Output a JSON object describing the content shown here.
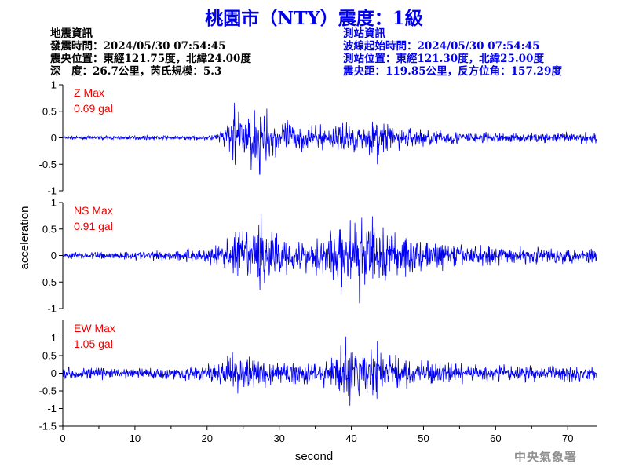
{
  "title": "桃園市（NTY）震度：1級",
  "quake_info": {
    "heading": "地震資訊",
    "time": "發震時間：2024/05/30 07:54:45",
    "epicenter": "震央位置：東經121.75度，北緯24.00度",
    "depth_magnitude": "深　度：26.7公里，芮氏規模：5.3"
  },
  "station_info": {
    "heading": "測站資訊",
    "wave_start": "波線起始時間：2024/05/30 07:54:45",
    "location": "測站位置：東經121.30度，北緯25.00度",
    "distance": "震央距：119.85公里，反方位角：157.29度"
  },
  "agency": "中央氣象署",
  "colors": {
    "trace": "#0000ee",
    "max_label": "#ee0000",
    "title": "#0000ee"
  },
  "chart_data": {
    "type": "line",
    "xlabel": "second",
    "ylabel": "acceleration",
    "xlim": [
      0,
      74
    ],
    "xticks": [
      0,
      10,
      20,
      30,
      40,
      50,
      60,
      70
    ],
    "panels": [
      {
        "component": "Z",
        "max_label": "Z Max",
        "max_value": "0.69 gal",
        "ylim": [
          -1,
          1
        ],
        "yticks": [
          -1,
          -0.5,
          0,
          0.5,
          1
        ],
        "ytick_labels": [
          "-1",
          "-0.5",
          "0",
          "0.5",
          "1"
        ],
        "envelope": [
          [
            0,
            0.04
          ],
          [
            20,
            0.05
          ],
          [
            22,
            0.15
          ],
          [
            23,
            0.45
          ],
          [
            24,
            0.55
          ],
          [
            26,
            0.55
          ],
          [
            27,
            0.68
          ],
          [
            28,
            0.5
          ],
          [
            30,
            0.45
          ],
          [
            32,
            0.35
          ],
          [
            35,
            0.25
          ],
          [
            38,
            0.3
          ],
          [
            40,
            0.35
          ],
          [
            42,
            0.3
          ],
          [
            44,
            0.45
          ],
          [
            46,
            0.28
          ],
          [
            50,
            0.2
          ],
          [
            55,
            0.15
          ],
          [
            60,
            0.12
          ],
          [
            65,
            0.1
          ],
          [
            70,
            0.12
          ],
          [
            72,
            0.15
          ],
          [
            74,
            0.12
          ]
        ],
        "spikes": [
          [
            23.8,
            0.66
          ],
          [
            26.1,
            -0.6
          ],
          [
            27.3,
            -0.69
          ],
          [
            28.3,
            0.55
          ],
          [
            43.6,
            -0.5
          ]
        ]
      },
      {
        "component": "NS",
        "max_label": "NS Max",
        "max_value": "0.91 gal",
        "ylim": [
          -1,
          1
        ],
        "yticks": [
          -1,
          -0.5,
          0,
          0.5,
          1
        ],
        "ytick_labels": [
          "-1",
          "-0.5",
          "0",
          "0.5",
          "1"
        ],
        "envelope": [
          [
            0,
            0.08
          ],
          [
            10,
            0.1
          ],
          [
            15,
            0.12
          ],
          [
            20,
            0.2
          ],
          [
            22,
            0.3
          ],
          [
            24,
            0.55
          ],
          [
            26,
            0.55
          ],
          [
            27,
            0.8
          ],
          [
            29,
            0.5
          ],
          [
            30,
            0.45
          ],
          [
            34,
            0.35
          ],
          [
            36,
            0.55
          ],
          [
            38,
            0.65
          ],
          [
            40,
            0.75
          ],
          [
            42,
            0.75
          ],
          [
            43,
            0.8
          ],
          [
            44,
            0.75
          ],
          [
            46,
            0.6
          ],
          [
            48,
            0.45
          ],
          [
            50,
            0.35
          ],
          [
            55,
            0.25
          ],
          [
            60,
            0.2
          ],
          [
            65,
            0.18
          ],
          [
            70,
            0.18
          ],
          [
            74,
            0.18
          ]
        ],
        "spikes": [
          [
            27.5,
            0.79
          ],
          [
            41.1,
            -0.9
          ],
          [
            42.9,
            0.74
          ],
          [
            38.6,
            -0.72
          ]
        ]
      },
      {
        "component": "EW",
        "max_label": "EW Max",
        "max_value": "1.05 gal",
        "ylim": [
          -1.5,
          1.5
        ],
        "yticks": [
          -1.5,
          -1,
          -0.5,
          0,
          0.5,
          1
        ],
        "ytick_labels": [
          "-1.5",
          "-1",
          "-0.5",
          "0",
          "0.5",
          "1"
        ],
        "envelope": [
          [
            0,
            0.2
          ],
          [
            10,
            0.2
          ],
          [
            15,
            0.22
          ],
          [
            20,
            0.28
          ],
          [
            22,
            0.45
          ],
          [
            24,
            0.6
          ],
          [
            26,
            0.55
          ],
          [
            28,
            0.5
          ],
          [
            30,
            0.4
          ],
          [
            34,
            0.35
          ],
          [
            36,
            0.45
          ],
          [
            38,
            0.6
          ],
          [
            39,
            1.0
          ],
          [
            40,
            0.85
          ],
          [
            42,
            0.8
          ],
          [
            43,
            0.9
          ],
          [
            44,
            0.75
          ],
          [
            46,
            0.6
          ],
          [
            48,
            0.45
          ],
          [
            50,
            0.38
          ],
          [
            55,
            0.32
          ],
          [
            60,
            0.28
          ],
          [
            65,
            0.25
          ],
          [
            70,
            0.28
          ],
          [
            74,
            0.25
          ]
        ],
        "spikes": [
          [
            39.2,
            1.04
          ],
          [
            39.8,
            -0.92
          ],
          [
            43.6,
            0.9
          ],
          [
            23.5,
            0.6
          ]
        ]
      }
    ]
  }
}
